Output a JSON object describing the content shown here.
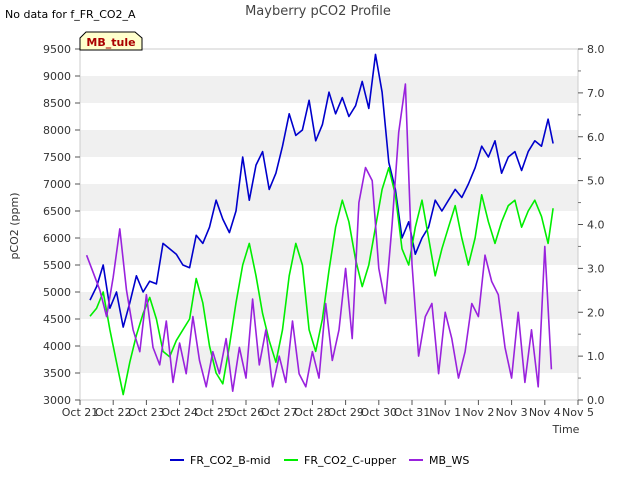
{
  "notice": "No data for f_FR_CO2_A",
  "site_tag": "MB_tule",
  "chart_data": {
    "type": "line",
    "title": "Mayberry pCO2 Profile",
    "xlabel": "Time",
    "ylabel": "pCO2 (ppm)",
    "y2label": "",
    "ylim": [
      3000,
      9500
    ],
    "y2lim": [
      0.0,
      8.0
    ],
    "xlim": [
      0,
      15
    ],
    "x_ticks": [
      0,
      1,
      2,
      3,
      4,
      5,
      6,
      7,
      8,
      9,
      10,
      11,
      12,
      13,
      14,
      15
    ],
    "x_tick_labels": [
      "Oct 21",
      "Oct 22",
      "Oct 23",
      "Oct 24",
      "Oct 25",
      "Oct 26",
      "Oct 27",
      "Oct 28",
      "Oct 29",
      "Oct 30",
      "Oct 31",
      "Nov 1",
      "Nov 2",
      "Nov 3",
      "Nov 4",
      "Nov 5"
    ],
    "y_ticks": [
      3000,
      3500,
      4000,
      4500,
      5000,
      5500,
      6000,
      6500,
      7000,
      7500,
      8000,
      8500,
      9000,
      9500
    ],
    "y_tick_labels": [
      "3000",
      "3500",
      "4000",
      "4500",
      "5000",
      "5500",
      "6000",
      "6500",
      "7000",
      "7500",
      "8000",
      "8500",
      "9000",
      "9500"
    ],
    "y2_ticks": [
      0,
      1,
      2,
      3,
      4,
      5,
      6,
      7,
      8
    ],
    "y2_tick_labels": [
      "0.0",
      "1.0",
      "2.0",
      "3.0",
      "4.0",
      "5.0",
      "6.0",
      "7.0",
      "8.0"
    ],
    "grid": "horizontal bands",
    "legend": "bottom",
    "series": [
      {
        "name": "FR_CO2_B-mid",
        "color": "#0000cc",
        "axis": "left",
        "x": [
          0.3,
          0.5,
          0.7,
          0.9,
          1.1,
          1.3,
          1.5,
          1.7,
          1.9,
          2.1,
          2.3,
          2.5,
          2.7,
          2.9,
          3.1,
          3.3,
          3.5,
          3.7,
          3.9,
          4.1,
          4.3,
          4.5,
          4.7,
          4.9,
          5.1,
          5.3,
          5.5,
          5.7,
          5.9,
          6.1,
          6.3,
          6.5,
          6.7,
          6.9,
          7.1,
          7.3,
          7.5,
          7.7,
          7.9,
          8.1,
          8.3,
          8.5,
          8.7,
          8.9,
          9.1,
          9.3,
          9.5,
          9.7,
          9.9,
          10.1,
          10.3,
          10.5,
          10.7,
          10.9,
          11.1,
          11.3,
          11.5,
          11.7,
          11.9,
          12.1,
          12.3,
          12.5,
          12.7,
          12.9,
          13.1,
          13.3,
          13.5,
          13.7,
          13.9,
          14.1,
          14.25
        ],
        "y": [
          4850,
          5100,
          5500,
          4700,
          5000,
          4350,
          4800,
          5300,
          5000,
          5200,
          5150,
          5900,
          5800,
          5700,
          5500,
          5450,
          6050,
          5900,
          6200,
          6700,
          6350,
          6100,
          6500,
          7500,
          6700,
          7350,
          7600,
          6900,
          7200,
          7700,
          8300,
          7900,
          8000,
          8550,
          7800,
          8100,
          8700,
          8300,
          8600,
          8250,
          8450,
          8900,
          8400,
          9400,
          8700,
          7400,
          6900,
          6000,
          6300,
          5700,
          6000,
          6200,
          6700,
          6500,
          6700,
          6900,
          6750,
          7000,
          7300,
          7700,
          7500,
          7800,
          7200,
          7500,
          7600,
          7250,
          7600,
          7800,
          7700,
          8200,
          7750
        ]
      },
      {
        "name": "FR_CO2_C-upper",
        "color": "#00ee00",
        "axis": "left",
        "x": [
          0.3,
          0.5,
          0.7,
          0.9,
          1.1,
          1.3,
          1.5,
          1.7,
          1.9,
          2.1,
          2.3,
          2.5,
          2.7,
          2.9,
          3.1,
          3.3,
          3.5,
          3.7,
          3.9,
          4.1,
          4.3,
          4.5,
          4.7,
          4.9,
          5.1,
          5.3,
          5.5,
          5.7,
          5.9,
          6.1,
          6.3,
          6.5,
          6.7,
          6.9,
          7.1,
          7.3,
          7.5,
          7.7,
          7.9,
          8.1,
          8.3,
          8.5,
          8.7,
          8.9,
          9.1,
          9.3,
          9.5,
          9.7,
          9.9,
          10.1,
          10.3,
          10.5,
          10.7,
          10.9,
          11.1,
          11.3,
          11.5,
          11.7,
          11.9,
          12.1,
          12.3,
          12.5,
          12.7,
          12.9,
          13.1,
          13.3,
          13.5,
          13.7,
          13.9,
          14.1,
          14.25
        ],
        "y": [
          4550,
          4700,
          5000,
          4300,
          3700,
          3100,
          3700,
          4200,
          4600,
          4900,
          4500,
          3900,
          3800,
          4100,
          4300,
          4500,
          5250,
          4800,
          4000,
          3500,
          3300,
          4000,
          4800,
          5500,
          5900,
          5300,
          4600,
          4100,
          3700,
          4300,
          5300,
          5900,
          5500,
          4300,
          3900,
          4500,
          5400,
          6200,
          6700,
          6300,
          5600,
          5100,
          5500,
          6200,
          6900,
          7300,
          6800,
          5800,
          5500,
          6200,
          6700,
          6000,
          5300,
          5800,
          6200,
          6600,
          6000,
          5500,
          6000,
          6800,
          6300,
          5900,
          6300,
          6600,
          6700,
          6200,
          6500,
          6700,
          6400,
          5900,
          6550
        ]
      },
      {
        "name": "MB_WS",
        "color": "#9922dd",
        "axis": "right",
        "x": [
          0.2,
          0.4,
          0.6,
          0.8,
          1.0,
          1.2,
          1.4,
          1.6,
          1.8,
          2.0,
          2.2,
          2.4,
          2.6,
          2.8,
          3.0,
          3.2,
          3.4,
          3.6,
          3.8,
          4.0,
          4.2,
          4.4,
          4.6,
          4.8,
          5.0,
          5.2,
          5.4,
          5.6,
          5.8,
          6.0,
          6.2,
          6.4,
          6.6,
          6.8,
          7.0,
          7.2,
          7.4,
          7.6,
          7.8,
          8.0,
          8.2,
          8.4,
          8.6,
          8.8,
          9.0,
          9.2,
          9.4,
          9.6,
          9.8,
          10.0,
          10.2,
          10.4,
          10.6,
          10.8,
          11.0,
          11.2,
          11.4,
          11.6,
          11.8,
          12.0,
          12.2,
          12.4,
          12.6,
          12.8,
          13.0,
          13.2,
          13.4,
          13.6,
          13.8,
          14.0,
          14.2
        ],
        "y": [
          3.3,
          2.9,
          2.5,
          1.9,
          2.8,
          3.9,
          2.5,
          1.6,
          1.1,
          2.4,
          1.2,
          0.8,
          1.8,
          0.4,
          1.3,
          0.6,
          1.9,
          0.9,
          0.3,
          1.1,
          0.6,
          1.4,
          0.2,
          1.2,
          0.5,
          2.3,
          0.8,
          1.6,
          0.3,
          1.0,
          0.4,
          1.8,
          0.6,
          0.3,
          1.1,
          0.5,
          2.2,
          0.9,
          1.6,
          3.0,
          1.4,
          4.5,
          5.3,
          5.0,
          3.0,
          2.2,
          4.0,
          6.1,
          7.2,
          3.1,
          1.0,
          1.9,
          2.2,
          0.6,
          2.0,
          1.4,
          0.5,
          1.1,
          2.2,
          1.9,
          3.3,
          2.7,
          2.4,
          1.2,
          0.5,
          2.0,
          0.4,
          1.6,
          0.3,
          3.5,
          0.7
        ]
      }
    ]
  }
}
